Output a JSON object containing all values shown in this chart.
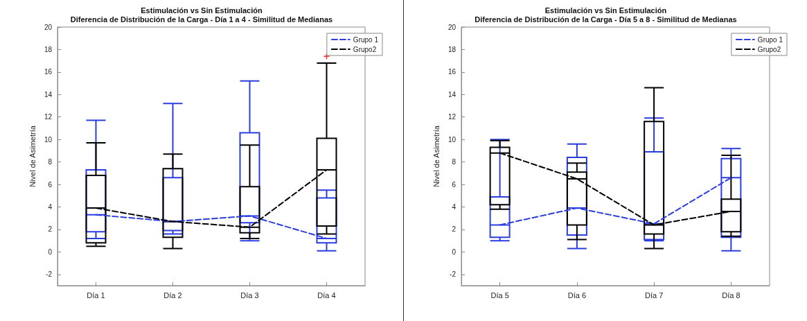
{
  "chart_data": [
    {
      "type": "box",
      "title": "Estimulación vs Sin Estimulación",
      "subtitle": "Diferencia de Distribución de la Carga - Día 1 a 4 - Similitud de Medianas",
      "ylabel": "Nivel de Asimetría",
      "categories": [
        "Día 1",
        "Día 2",
        "Día 3",
        "Día 4"
      ],
      "ylim": [
        -3,
        20
      ],
      "yticks": [
        -2,
        0,
        2,
        4,
        6,
        8,
        10,
        12,
        14,
        16,
        18,
        20
      ],
      "grid": false,
      "legend": "top right",
      "series": [
        {
          "type": "box",
          "color": "#2a3de0",
          "boxes": [
            {
              "low": 1.2,
              "q1": 1.8,
              "median": 3.3,
              "q3": 7.3,
              "high": 11.7
            },
            {
              "low": 1.6,
              "q1": 1.9,
              "median": 2.7,
              "q3": 6.6,
              "high": 13.2
            },
            {
              "low": 1.0,
              "q1": 2.6,
              "median": 3.2,
              "q3": 10.6,
              "high": 15.2
            },
            {
              "low": 0.1,
              "q1": 0.8,
              "median": 1.2,
              "q3": 4.8,
              "high": 5.5
            }
          ]
        },
        {
          "type": "box",
          "color": "#000000",
          "boxes": [
            {
              "low": 0.5,
              "q1": 0.8,
              "median": 3.9,
              "q3": 6.8,
              "high": 9.7
            },
            {
              "low": 0.3,
              "q1": 1.3,
              "median": 2.7,
              "q3": 7.4,
              "high": 8.7
            },
            {
              "low": 1.2,
              "q1": 1.7,
              "median": 2.2,
              "q3": 5.8,
              "high": 9.5
            },
            {
              "low": 1.6,
              "q1": 2.3,
              "median": 7.3,
              "q3": 10.1,
              "high": 16.8,
              "outliers": [
                17.4
              ]
            }
          ]
        },
        {
          "type": "line",
          "name": "Grupo 1",
          "color": "#2a3de0",
          "line_style": "dashed",
          "marker": "none",
          "values": [
            3.3,
            2.7,
            3.2,
            1.2
          ]
        },
        {
          "type": "line",
          "name": "Grupo2",
          "color": "#000000",
          "line_style": "dashed",
          "marker": "none",
          "values": [
            3.9,
            2.7,
            2.2,
            7.3
          ]
        }
      ]
    },
    {
      "type": "box",
      "title": "Estimulación vs Sin Estimulación",
      "subtitle": "Diferencia de Distribución de la Carga - Día 5 a 8 - Similitud de Medianas",
      "ylabel": "Nivel de Asimetría",
      "categories": [
        "Día 5",
        "Día 6",
        "Día 7",
        "Día 8"
      ],
      "ylim": [
        -3,
        20
      ],
      "yticks": [
        -2,
        0,
        2,
        4,
        6,
        8,
        10,
        12,
        14,
        16,
        18,
        20
      ],
      "grid": false,
      "legend": "top right",
      "series": [
        {
          "type": "box",
          "color": "#2a3de0",
          "boxes": [
            {
              "low": 1.0,
              "q1": 1.3,
              "median": 2.4,
              "q3": 4.9,
              "high": 10.0
            },
            {
              "low": 0.3,
              "q1": 1.5,
              "median": 3.9,
              "q3": 8.4,
              "high": 9.6
            },
            {
              "low": 1.0,
              "q1": 1.1,
              "median": 2.5,
              "q3": 8.9,
              "high": 11.9
            },
            {
              "low": 0.1,
              "q1": 1.3,
              "median": 6.6,
              "q3": 8.3,
              "high": 9.2
            }
          ]
        },
        {
          "type": "box",
          "color": "#000000",
          "boxes": [
            {
              "low": 3.8,
              "q1": 4.2,
              "median": 8.8,
              "q3": 9.3,
              "high": 9.9
            },
            {
              "low": 1.1,
              "q1": 2.4,
              "median": 6.5,
              "q3": 7.1,
              "high": 7.9
            },
            {
              "low": 0.3,
              "q1": 1.6,
              "median": 2.4,
              "q3": 11.6,
              "high": 14.6
            },
            {
              "low": 1.4,
              "q1": 1.8,
              "median": 3.6,
              "q3": 4.7,
              "high": 8.6
            }
          ]
        },
        {
          "type": "line",
          "name": "Grupo 1",
          "color": "#2a3de0",
          "line_style": "dashed",
          "marker": "none",
          "values": [
            2.4,
            3.9,
            2.5,
            6.6
          ]
        },
        {
          "type": "line",
          "name": "Grupo2",
          "color": "#000000",
          "line_style": "dashed",
          "marker": "none",
          "values": [
            8.8,
            6.5,
            2.4,
            3.6
          ]
        }
      ]
    }
  ]
}
